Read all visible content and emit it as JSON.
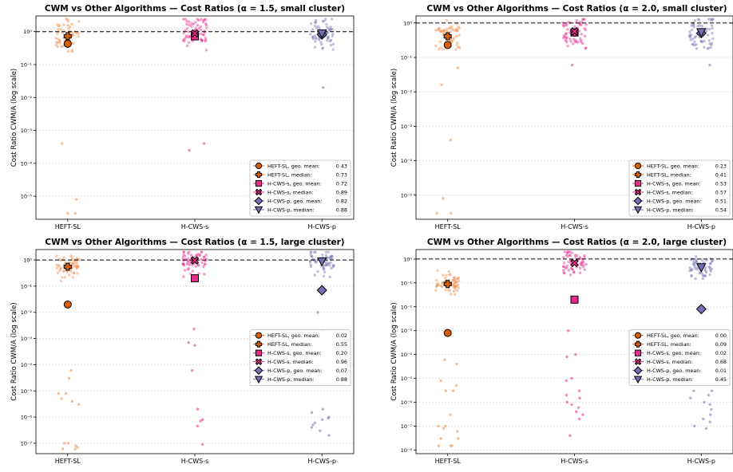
{
  "chart_data": [
    {
      "type": "scatter",
      "title": "CWM vs Other Algorithms — Cost Ratios (α = 1.5, small cluster)",
      "ylabel": "Cost Ratio  CWM/A  (log scale)",
      "yscale": "log",
      "ylim": [
        2e-06,
        3
      ],
      "yticks": [
        1e-05,
        0.0001,
        0.001,
        0.01,
        0.1,
        1
      ],
      "yticklabels": [
        "10⁻⁵",
        "10⁻⁴",
        "10⁻³",
        "10⁻²",
        "10⁻¹",
        "10⁰"
      ],
      "categories": [
        "HEFT-SL",
        "H-CWS-s",
        "H-CWS-p"
      ],
      "reference_line": 1,
      "grid": true,
      "legend_position": "lower right",
      "series": [
        {
          "category": "HEFT-SL",
          "color": "#ef8a47",
          "geo_mean": 0.43,
          "median": 0.73,
          "outliers": [
            0.0004,
            8e-06,
            3e-06,
            3e-06
          ]
        },
        {
          "category": "H-CWS-s",
          "color": "#e7298a",
          "geo_mean": 0.72,
          "median": 0.89,
          "outliers": [
            0.0004,
            0.00025
          ]
        },
        {
          "category": "H-CWS-p",
          "color": "#7570b3",
          "geo_mean": 0.82,
          "median": 0.88,
          "outliers": [
            0.02
          ]
        }
      ],
      "legend": [
        {
          "label": "HEFT-SL, geo. mean:",
          "value": "0.43",
          "marker": "circle",
          "color": "#d95f02"
        },
        {
          "label": "HEFT-SL, median:",
          "value": "0.73",
          "marker": "plus",
          "color": "#d95f02"
        },
        {
          "label": "H-CWS-s, geo. mean:",
          "value": "0.72",
          "marker": "square",
          "color": "#e7298a"
        },
        {
          "label": "H-CWS-s, median:",
          "value": "0.89",
          "marker": "x",
          "color": "#e7298a"
        },
        {
          "label": "H-CWS-p, geo. mean:",
          "value": "0.82",
          "marker": "diamond",
          "color": "#7570b3"
        },
        {
          "label": "H-CWS-p, median:",
          "value": "0.88",
          "marker": "triangle-down",
          "color": "#7570b3"
        }
      ]
    },
    {
      "type": "scatter",
      "title": "CWM vs Other Algorithms — Cost Ratios (α = 2.0, small cluster)",
      "ylabel": "Cost Ratio  CWM/A  (log scale)",
      "yscale": "log",
      "ylim": [
        2e-06,
        1.6
      ],
      "yticks": [
        1e-05,
        0.0001,
        0.001,
        0.01,
        0.1,
        1
      ],
      "yticklabels": [
        "10⁻⁵",
        "10⁻⁴",
        "10⁻³",
        "10⁻²",
        "10⁻¹",
        "10⁰"
      ],
      "categories": [
        "HEFT-SL",
        "H-CWS-s",
        "H-CWS-p"
      ],
      "reference_line": 1,
      "grid": true,
      "legend_position": "lower right",
      "series": [
        {
          "category": "HEFT-SL",
          "color": "#ef8a47",
          "geo_mean": 0.23,
          "median": 0.41,
          "outliers": [
            0.05,
            0.016,
            0.0004,
            8e-06,
            3e-06,
            3e-06
          ]
        },
        {
          "category": "H-CWS-s",
          "color": "#e7298a",
          "geo_mean": 0.53,
          "median": 0.57,
          "outliers": [
            0.06
          ]
        },
        {
          "category": "H-CWS-p",
          "color": "#7570b3",
          "geo_mean": 0.51,
          "median": 0.54,
          "outliers": [
            0.06
          ]
        }
      ],
      "legend": [
        {
          "label": "HEFT-SL, geo. mean:",
          "value": "0.23",
          "marker": "circle",
          "color": "#d95f02"
        },
        {
          "label": "HEFT-SL, median:",
          "value": "0.41",
          "marker": "plus",
          "color": "#d95f02"
        },
        {
          "label": "H-CWS-s, geo. mean:",
          "value": "0.53",
          "marker": "square",
          "color": "#e7298a"
        },
        {
          "label": "H-CWS-s, median:",
          "value": "0.57",
          "marker": "x",
          "color": "#e7298a"
        },
        {
          "label": "H-CWS-p, geo. mean:",
          "value": "0.51",
          "marker": "diamond",
          "color": "#7570b3"
        },
        {
          "label": "H-CWS-p, median:",
          "value": "0.54",
          "marker": "triangle-down",
          "color": "#7570b3"
        }
      ]
    },
    {
      "type": "scatter",
      "title": "CWM vs Other Algorithms — Cost Ratios (α = 1.5, large cluster)",
      "ylabel": "Cost Ratio  CWM/A  (log scale)",
      "yscale": "log",
      "ylim": [
        4e-08,
        2.5
      ],
      "yticks": [
        1e-07,
        1e-06,
        1e-05,
        0.0001,
        0.001,
        0.01,
        0.1,
        1
      ],
      "yticklabels": [
        "10⁻⁷",
        "10⁻⁶",
        "10⁻⁵",
        "10⁻⁴",
        "10⁻³",
        "10⁻²",
        "10⁻¹",
        "10⁰"
      ],
      "categories": [
        "HEFT-SL",
        "H-CWS-s",
        "H-CWS-p"
      ],
      "reference_line": 1,
      "grid": true,
      "legend_position": "center right",
      "series": [
        {
          "category": "HEFT-SL",
          "color": "#ef8a47",
          "geo_mean": 0.02,
          "median": 0.55,
          "outliers": [
            6e-05,
            3e-05,
            8e-06,
            8e-06,
            5e-06,
            4e-06,
            3e-06,
            1e-07,
            1e-07,
            8e-08,
            7e-08,
            6e-08,
            6e-08
          ]
        },
        {
          "category": "H-CWS-s",
          "color": "#e7298a",
          "geo_mean": 0.2,
          "median": 0.96,
          "outliers": [
            0.0023,
            0.0007,
            0.00055,
            6e-05,
            2e-06,
            8e-07,
            7e-07,
            4.5e-07,
            9e-08
          ]
        },
        {
          "category": "H-CWS-p",
          "color": "#7570b3",
          "geo_mean": 0.07,
          "median": 0.88,
          "outliers": [
            0.01,
            0.002,
            2e-06,
            1.5e-06,
            1e-06,
            9e-07,
            8e-07,
            6e-07,
            5e-07,
            4e-07,
            3e-07,
            2e-07
          ]
        }
      ],
      "legend": [
        {
          "label": "HEFT-SL, geo. mean:",
          "value": "0.02",
          "marker": "circle",
          "color": "#d95f02"
        },
        {
          "label": "HEFT-SL, median:",
          "value": "0.55",
          "marker": "plus",
          "color": "#d95f02"
        },
        {
          "label": "H-CWS-s, geo. mean:",
          "value": "0.20",
          "marker": "square",
          "color": "#e7298a"
        },
        {
          "label": "H-CWS-s, median:",
          "value": "0.96",
          "marker": "x",
          "color": "#e7298a"
        },
        {
          "label": "H-CWS-p, geo. mean:",
          "value": "0.07",
          "marker": "diamond",
          "color": "#7570b3"
        },
        {
          "label": "H-CWS-p, median:",
          "value": "0.88",
          "marker": "triangle-down",
          "color": "#7570b3"
        }
      ]
    },
    {
      "type": "scatter",
      "title": "CWM vs Other Algorithms — Cost Ratios (α = 2.0, large cluster)",
      "ylabel": "Cost Ratio  CWM/A  (log scale)",
      "yscale": "log",
      "ylim": [
        7e-09,
        2.5
      ],
      "yticks": [
        1e-08,
        1e-07,
        1e-06,
        1e-05,
        0.0001,
        0.001,
        0.01,
        0.1,
        1
      ],
      "yticklabels": [
        "10⁻⁸",
        "10⁻⁷",
        "10⁻⁶",
        "10⁻⁵",
        "10⁻⁴",
        "10⁻³",
        "10⁻²",
        "10⁻¹",
        "10⁰"
      ],
      "categories": [
        "HEFT-SL",
        "H-CWS-s",
        "H-CWS-p"
      ],
      "reference_line": 1,
      "grid": true,
      "legend_position": "center right",
      "series": [
        {
          "category": "HEFT-SL",
          "color": "#ef8a47",
          "geo_mean": 0.0008,
          "median": 0.09,
          "outliers": [
            6e-05,
            4e-05,
            8e-06,
            5e-06,
            3e-06,
            3e-06,
            3e-07,
            1e-07,
            1e-07,
            8e-08,
            6e-08,
            3e-08,
            3e-08,
            1.5e-08,
            1.5e-08,
            1.5e-08
          ]
        },
        {
          "category": "H-CWS-s",
          "color": "#e7298a",
          "geo_mean": 0.02,
          "median": 0.68,
          "outliers": [
            0.001,
            0.0001,
            8e-05,
            1e-05,
            8e-06,
            3e-06,
            2e-06,
            1.5e-06,
            1e-06,
            8e-07,
            6e-07,
            4e-07,
            3e-07,
            2e-07,
            4e-08
          ]
        },
        {
          "category": "H-CWS-p",
          "color": "#7570b3",
          "geo_mean": 0.008,
          "median": 0.45,
          "outliers": [
            0.01,
            3e-06,
            3e-06,
            2e-06,
            1.5e-06,
            1e-06,
            8e-07,
            5e-07,
            3e-07,
            2e-07,
            1.5e-07,
            1e-07,
            8e-08
          ]
        }
      ],
      "legend": [
        {
          "label": "HEFT-SL, geo. mean:",
          "value": "0.00",
          "marker": "circle",
          "color": "#d95f02"
        },
        {
          "label": "HEFT-SL, median:",
          "value": "0.09",
          "marker": "plus",
          "color": "#d95f02"
        },
        {
          "label": "H-CWS-s, geo. mean:",
          "value": "0.02",
          "marker": "square",
          "color": "#e7298a"
        },
        {
          "label": "H-CWS-s, median:",
          "value": "0.68",
          "marker": "x",
          "color": "#e7298a"
        },
        {
          "label": "H-CWS-p, geo. mean:",
          "value": "0.01",
          "marker": "diamond",
          "color": "#7570b3"
        },
        {
          "label": "H-CWS-p, median:",
          "value": "0.45",
          "marker": "triangle-down",
          "color": "#7570b3"
        }
      ]
    }
  ]
}
